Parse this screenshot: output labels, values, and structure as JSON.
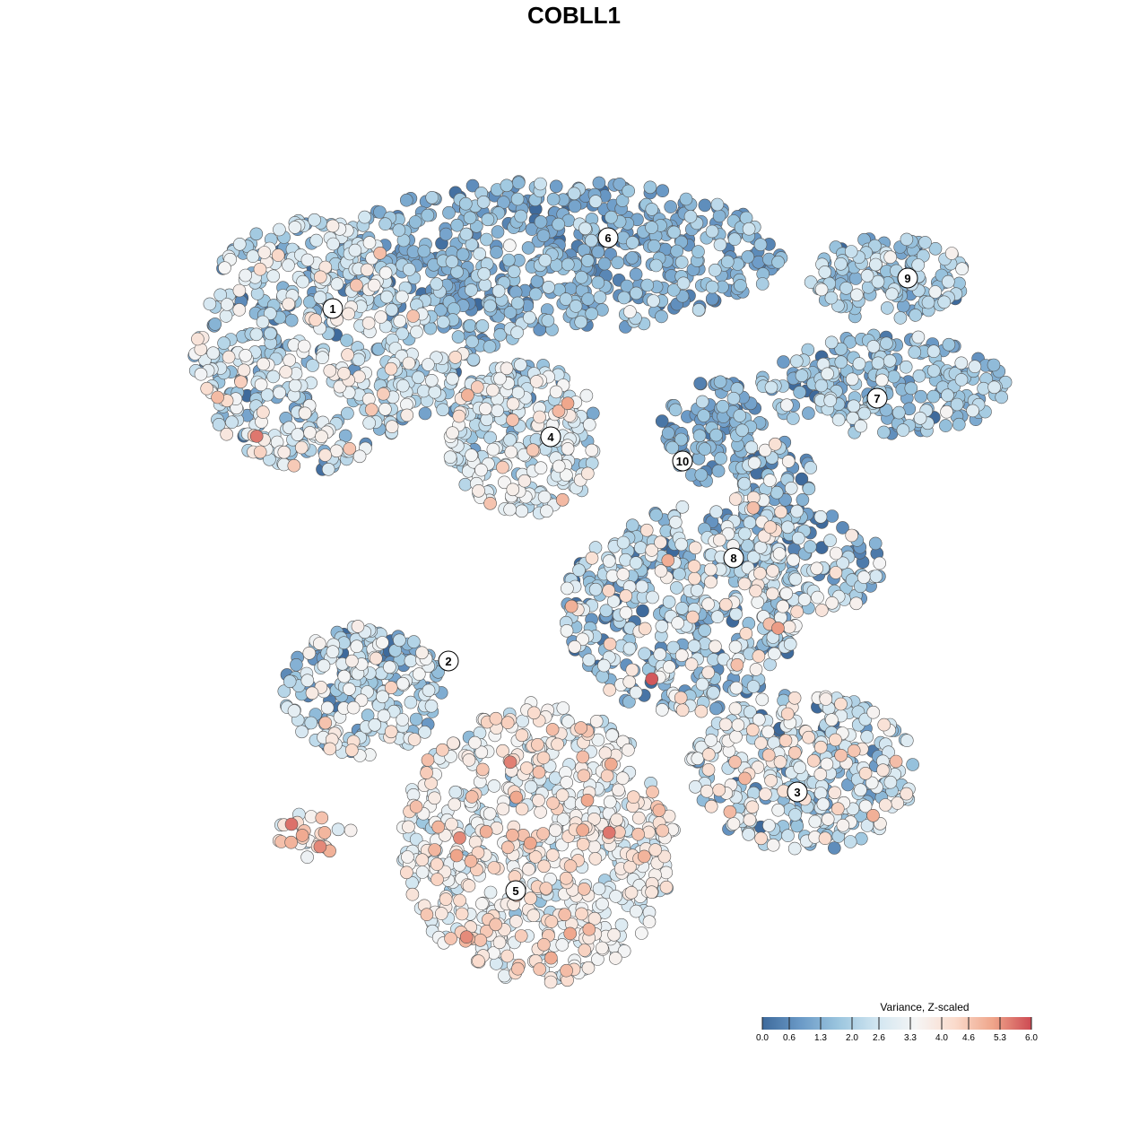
{
  "chart_data": {
    "type": "scatter",
    "title": "COBLL1",
    "legend": {
      "title": "Variance, Z-scaled",
      "placement": "bottom-right",
      "ticks": [
        "0.0",
        "0.6",
        "1.3",
        "2.0",
        "2.6",
        "3.3",
        "4.0",
        "4.6",
        "5.3",
        "6.0"
      ],
      "range": [
        0,
        6
      ],
      "colors": [
        "#3e6a9c",
        "#6b9ac7",
        "#9cc6df",
        "#d2e6f1",
        "#f5f5f5",
        "#fadbcc",
        "#efa58a",
        "#cd4a53"
      ]
    },
    "clusters": [
      {
        "label": "1",
        "mean_value": 2.3,
        "spread": 1.0
      },
      {
        "label": "2",
        "mean_value": 2.2,
        "spread": 1.1
      },
      {
        "label": "3",
        "mean_value": 2.4,
        "spread": 1.1
      },
      {
        "label": "4",
        "mean_value": 2.5,
        "spread": 0.9
      },
      {
        "label": "5",
        "mean_value": 3.4,
        "spread": 0.8
      },
      {
        "label": "6",
        "mean_value": 1.3,
        "spread": 0.6
      },
      {
        "label": "7",
        "mean_value": 1.6,
        "spread": 0.7
      },
      {
        "label": "8",
        "mean_value": 1.9,
        "spread": 1.2
      },
      {
        "label": "9",
        "mean_value": 1.7,
        "spread": 0.7
      },
      {
        "label": "10",
        "mean_value": 1.1,
        "spread": 0.5
      },
      {
        "label": "",
        "mean_value": 3.8,
        "spread": 0.9
      }
    ],
    "grid": false
  }
}
